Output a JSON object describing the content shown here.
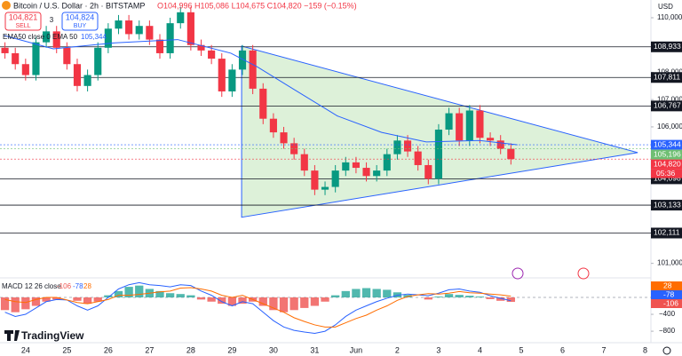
{
  "header": {
    "symbol": "Bitcoin / U.S. Dollar · 2h · BITSTAMP",
    "ohlc": "O104,996 H105,086 L104,675 C104,820 −159 (−0.15%)",
    "sell_price": "104,821",
    "sell": "SELL",
    "spread": "3",
    "buy_price": "104,824",
    "buy": "BUY",
    "currency": "USD",
    "countdown": "05:36",
    "logo": "TradingView"
  },
  "chart_data": [
    {
      "type": "candlestick",
      "up_color": "#089981",
      "down_color": "#f23645",
      "x": [
        -0.5,
        -0.25,
        0,
        0.25,
        0.5,
        0.75,
        1,
        1.25,
        1.5,
        1.75,
        2,
        2.25,
        2.5,
        2.75,
        3,
        3.25,
        3.5,
        3.75,
        4,
        4.25,
        4.5,
        4.75,
        5,
        5.25,
        5.5,
        5.75,
        6,
        6.25,
        6.5,
        6.75,
        7,
        7.25,
        7.5,
        7.75,
        8,
        8.25,
        8.5,
        8.75,
        9,
        9.25,
        9.5,
        9.75,
        10,
        10.25,
        10.5,
        10.75,
        11,
        11.25,
        11.5,
        11.75
      ],
      "open": [
        108900,
        108700,
        108300,
        107900,
        109100,
        109500,
        108900,
        108300,
        107500,
        107900,
        108900,
        109600,
        109900,
        109400,
        109700,
        109200,
        108700,
        109800,
        110200,
        109000,
        108800,
        108500,
        107300,
        108100,
        108800,
        107400,
        106300,
        105800,
        105400,
        105000,
        104400,
        103700,
        103800,
        104400,
        104700,
        104500,
        104200,
        104400,
        105000,
        105500,
        105100,
        104600,
        104100,
        105900,
        106500,
        105500,
        106600,
        105600,
        105500,
        105200
      ],
      "high": [
        109100,
        108900,
        108500,
        109300,
        109700,
        109700,
        109100,
        108500,
        108100,
        109100,
        109800,
        110100,
        110100,
        109900,
        109900,
        109400,
        110000,
        110400,
        110400,
        109200,
        109000,
        108700,
        108300,
        109000,
        109000,
        107600,
        106500,
        106000,
        105600,
        105200,
        104600,
        104000,
        104600,
        104900,
        104900,
        104700,
        104600,
        105200,
        105700,
        105700,
        105300,
        104800,
        106100,
        106700,
        106700,
        106800,
        106800,
        105800,
        105700,
        105400
      ],
      "low": [
        108500,
        108100,
        107700,
        107700,
        108900,
        108700,
        108100,
        107300,
        107300,
        107700,
        108700,
        109400,
        109200,
        109200,
        109000,
        108500,
        108500,
        109600,
        108800,
        108600,
        108300,
        107100,
        107100,
        107900,
        107200,
        106100,
        105600,
        105200,
        104800,
        104200,
        103500,
        103500,
        103600,
        104200,
        104300,
        104000,
        104000,
        104200,
        104800,
        104900,
        104400,
        103900,
        103900,
        105700,
        105300,
        105300,
        105400,
        105300,
        105000,
        104620
      ],
      "close": [
        108700,
        108300,
        107900,
        109100,
        109500,
        108900,
        108300,
        107500,
        107900,
        108900,
        109600,
        109900,
        109400,
        109700,
        109200,
        108700,
        109800,
        110200,
        109000,
        108800,
        108500,
        107300,
        108100,
        108800,
        107400,
        106300,
        105800,
        105400,
        105000,
        104400,
        103700,
        103800,
        104400,
        104700,
        104500,
        104200,
        104400,
        105000,
        105500,
        105100,
        104600,
        104100,
        105900,
        106500,
        105500,
        106600,
        105600,
        105500,
        105200,
        104820
      ],
      "series": [
        {
          "name": "EMA50 close 0 EMA 50",
          "color": "#2962ff",
          "x": [
            -0.52,
            0.67,
            2.17,
            3.68,
            4.97,
            5.61,
            6.47,
            7.55,
            8.62,
            9.7,
            10.99,
            11.91
          ],
          "values": [
            109350,
            108860,
            109080,
            109200,
            108700,
            108200,
            107400,
            106400,
            105800,
            105450,
            105500,
            105344
          ],
          "value_labels": [
            "105,344"
          ]
        }
      ],
      "pattern": {
        "color": "#2962ff",
        "fill": "#d4edd0",
        "x": [
          5.23,
          5.23,
          14.82
        ],
        "values": [
          108960,
          102690,
          105060
        ]
      },
      "levels": [
        {
          "value": 108933,
          "label": "108,933"
        },
        {
          "value": 107811,
          "label": "107,811"
        },
        {
          "value": 106767,
          "label": "106,767"
        },
        {
          "value": 104098,
          "label": "104,098"
        },
        {
          "value": 103133,
          "label": "103,133"
        },
        {
          "value": 102111,
          "label": "102,111"
        }
      ],
      "price_tags": [
        {
          "value": 105344,
          "label": "105,344",
          "color": "#2962ff"
        },
        {
          "value": 105196,
          "label": "105,196",
          "color": "#6fbf73"
        },
        {
          "value": 104820,
          "label": "104,820",
          "color": "#f23645"
        }
      ],
      "xlim": [
        -0.62,
        15.14
      ],
      "xticks": [
        {
          "value": 0,
          "label": "24"
        },
        {
          "value": 1,
          "label": "25"
        },
        {
          "value": 2,
          "label": "26"
        },
        {
          "value": 3,
          "label": "27"
        },
        {
          "value": 4,
          "label": "28"
        },
        {
          "value": 5,
          "label": "29"
        },
        {
          "value": 6,
          "label": "30"
        },
        {
          "value": 7,
          "label": "31"
        },
        {
          "value": 8,
          "label": "Jun"
        },
        {
          "value": 9,
          "label": "2"
        },
        {
          "value": 10,
          "label": "3"
        },
        {
          "value": 11,
          "label": "4"
        },
        {
          "value": 12,
          "label": "5"
        },
        {
          "value": 13,
          "label": "6"
        },
        {
          "value": 14,
          "label": "7"
        },
        {
          "value": 15,
          "label": "8"
        }
      ],
      "ylim": [
        100500,
        110650
      ],
      "yticks": [
        {
          "value": 110000,
          "label": "110,000"
        },
        {
          "value": 108000,
          "label": "108,000"
        },
        {
          "value": 107000,
          "label": "107,000"
        },
        {
          "value": 106000,
          "label": "106,000"
        },
        {
          "value": 101000,
          "label": "101,000"
        }
      ]
    },
    {
      "type": "macd",
      "title": "MACD 12 26 close",
      "x": [
        -0.5,
        -0.25,
        0,
        0.25,
        0.5,
        0.75,
        1,
        1.25,
        1.5,
        1.75,
        2,
        2.25,
        2.5,
        2.75,
        3,
        3.25,
        3.5,
        3.75,
        4,
        4.25,
        4.5,
        4.75,
        5,
        5.25,
        5.5,
        5.75,
        6,
        6.25,
        6.5,
        6.75,
        7,
        7.25,
        7.5,
        7.75,
        8,
        8.25,
        8.5,
        8.75,
        9,
        9.25,
        9.5,
        9.75,
        10,
        10.25,
        10.5,
        10.75,
        11,
        11.25,
        11.5,
        11.75
      ],
      "histogram": [
        -300,
        -350,
        -280,
        -200,
        -100,
        -50,
        0,
        -80,
        -150,
        -100,
        50,
        150,
        250,
        280,
        200,
        150,
        100,
        80,
        50,
        -50,
        -100,
        -150,
        -200,
        -150,
        -100,
        -200,
        -300,
        -350,
        -300,
        -250,
        -200,
        -100,
        50,
        150,
        200,
        220,
        200,
        180,
        120,
        60,
        0,
        -50,
        20,
        80,
        60,
        40,
        20,
        -40,
        -80,
        -106
      ],
      "macd": [
        -350,
        -450,
        -400,
        -250,
        -100,
        -50,
        -60,
        -200,
        -300,
        -200,
        0,
        200,
        300,
        350,
        300,
        280,
        250,
        300,
        280,
        150,
        50,
        -100,
        -200,
        -100,
        -150,
        -350,
        -550,
        -700,
        -780,
        -820,
        -850,
        -800,
        -650,
        -450,
        -300,
        -200,
        -100,
        -20,
        50,
        80,
        60,
        40,
        100,
        180,
        200,
        150,
        120,
        40,
        -20,
        -78
      ],
      "signal": [
        -50,
        -100,
        -120,
        -50,
        0,
        0,
        -60,
        -120,
        -150,
        -100,
        -50,
        50,
        50,
        70,
        100,
        130,
        150,
        220,
        230,
        200,
        150,
        50,
        0,
        50,
        -50,
        -150,
        -250,
        -350,
        -480,
        -570,
        -650,
        -700,
        -700,
        -600,
        -500,
        -420,
        -300,
        -200,
        -70,
        20,
        60,
        90,
        80,
        100,
        140,
        110,
        100,
        80,
        60,
        28
      ],
      "colors": {
        "up": "#26a69a",
        "down": "#ef5350",
        "macd": "#2962ff",
        "signal": "#ff6d00"
      },
      "ylim": [
        -1050,
        420
      ],
      "yticks": [
        {
          "value": -400,
          "label": "−400"
        },
        {
          "value": -800,
          "label": "−800"
        }
      ]
    }
  ]
}
